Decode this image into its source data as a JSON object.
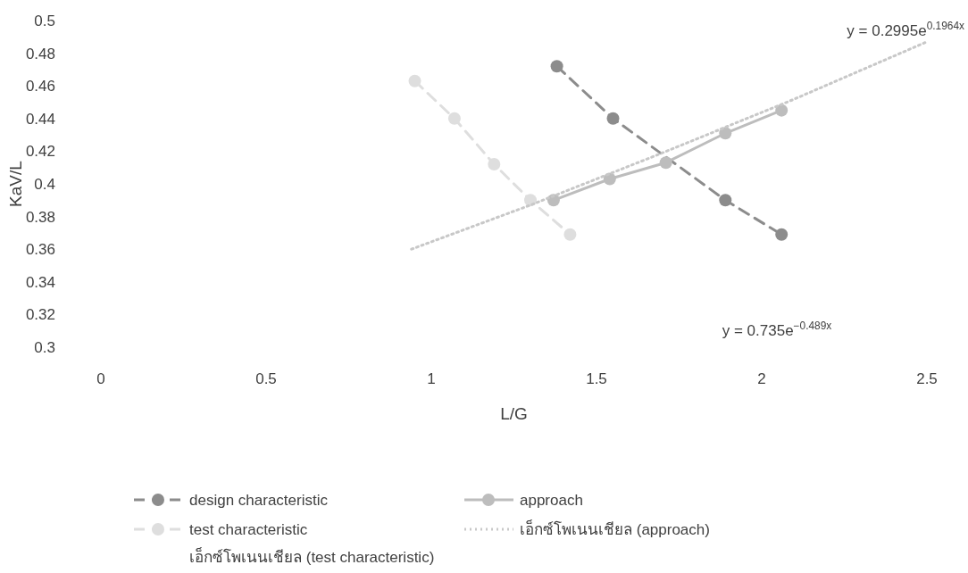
{
  "chart_data": {
    "type": "line",
    "xlabel": "L/G",
    "ylabel": "KaV/L",
    "xlim": [
      0,
      2.5
    ],
    "ylim": [
      0.3,
      0.5
    ],
    "xticks": [
      0,
      0.5,
      1,
      1.5,
      2,
      2.5
    ],
    "yticks": [
      0.3,
      0.32,
      0.34,
      0.36,
      0.38,
      0.4,
      0.42,
      0.44,
      0.46,
      0.48,
      0.5
    ],
    "grid": false,
    "legend": "bottom",
    "marker": "circle",
    "series": [
      {
        "name": "design characteristic",
        "color": "#8c8c8c",
        "line_style": "dashed",
        "x": [
          1.38,
          1.55,
          1.89,
          2.06
        ],
        "values": [
          0.472,
          0.44,
          0.39,
          0.369
        ]
      },
      {
        "name": "approach",
        "color": "#bdbdbd",
        "line_style": "solid",
        "x": [
          1.37,
          1.54,
          1.71,
          1.89,
          2.06
        ],
        "values": [
          0.39,
          0.403,
          0.413,
          0.431,
          0.445
        ]
      },
      {
        "name": "test characteristic",
        "color": "#dedede",
        "line_style": "dashed",
        "x": [
          0.95,
          1.07,
          1.19,
          1.3,
          1.42
        ],
        "values": [
          0.463,
          0.44,
          0.412,
          0.39,
          0.369
        ]
      },
      {
        "name": "เอ็กซ์โพเนนเชียล (approach)",
        "color": "#c8c8c8",
        "line_style": "dotted",
        "marker": "none",
        "x": [
          0.94,
          1.3,
          1.7,
          2.1,
          2.5
        ],
        "values": [
          0.36,
          0.387,
          0.419,
          0.452,
          0.487
        ]
      },
      {
        "name": "เอ็กซ์โพเนนเชียล (test characteristic)"
      }
    ],
    "annotations": [
      "y = 0.2995e$^{0.1964x}$",
      "y = 0.735e$^{−0.489x}$"
    ]
  }
}
